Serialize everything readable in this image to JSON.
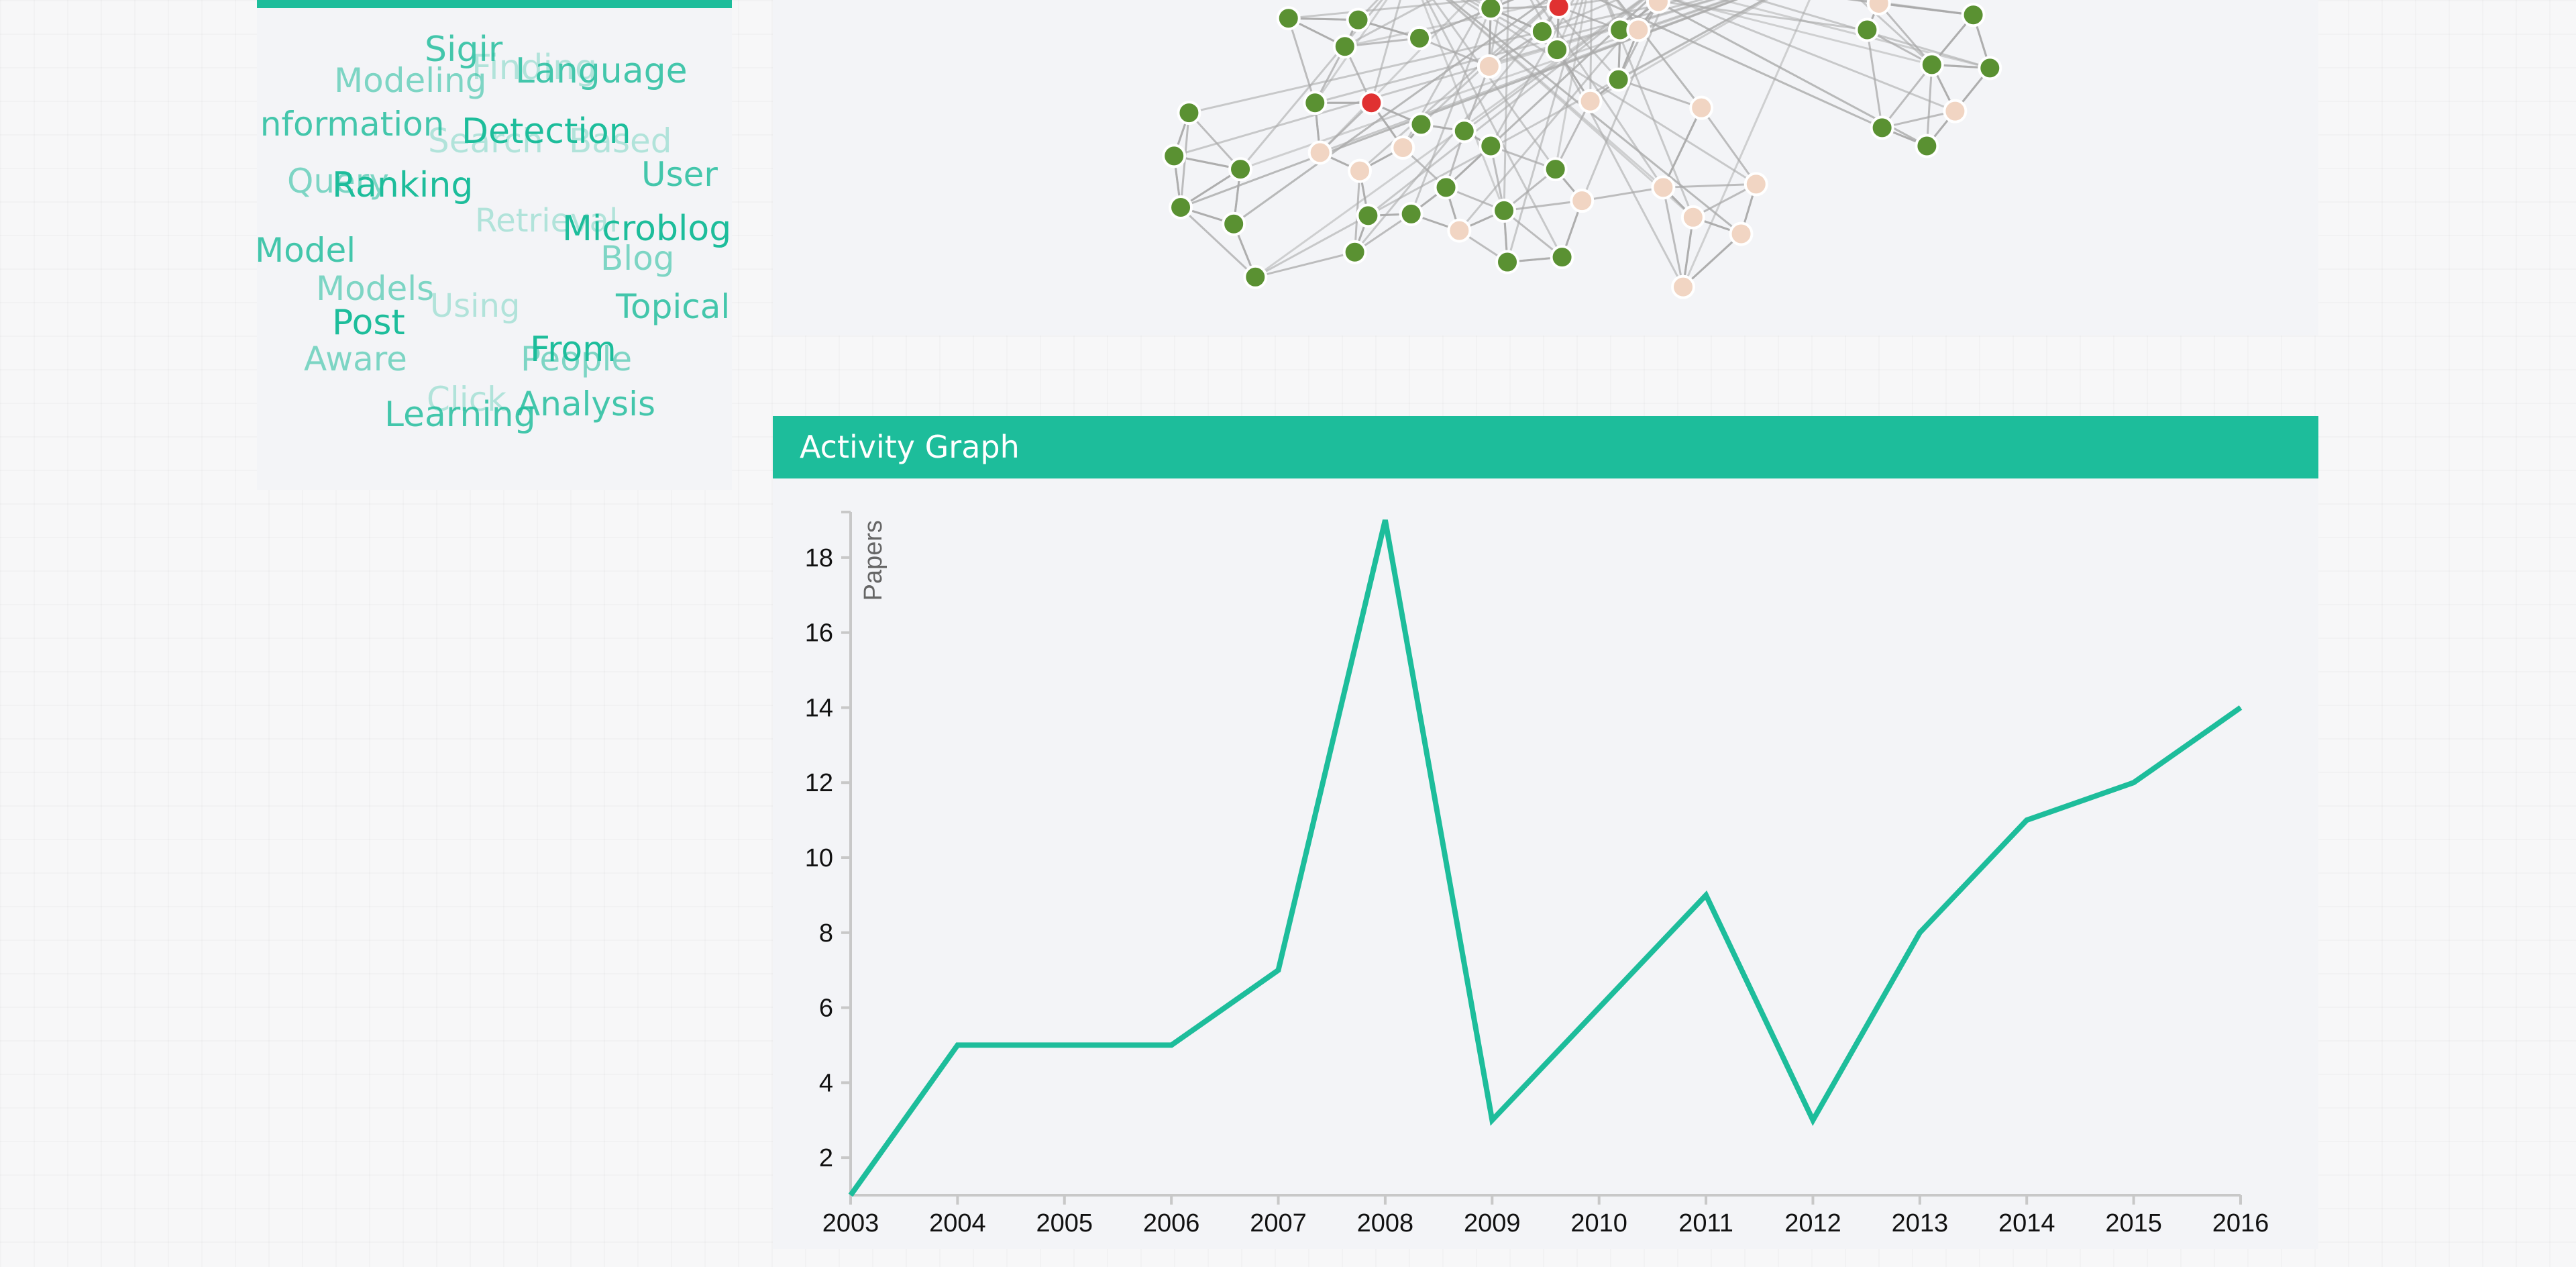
{
  "colors": {
    "accent": "#1dbd9b",
    "panel_bg": "#f3f4f7",
    "node_green": "#5a9132",
    "node_peach": "#f1d5c3",
    "node_red": "#e03131",
    "edge": "#aaaaaa",
    "line": "#1dbd9b"
  },
  "word_cloud": {
    "words": [
      {
        "text": "Sigir",
        "emphasis": "medium"
      },
      {
        "text": "Finding",
        "emphasis": "faint"
      },
      {
        "text": "Modeling",
        "emphasis": "light"
      },
      {
        "text": "Language",
        "emphasis": "medium"
      },
      {
        "text": "Information",
        "emphasis": "medium"
      },
      {
        "text": "Detection",
        "emphasis": "strong"
      },
      {
        "text": "Search",
        "emphasis": "faint"
      },
      {
        "text": "Based",
        "emphasis": "faint"
      },
      {
        "text": "User",
        "emphasis": "medium"
      },
      {
        "text": "Query",
        "emphasis": "light"
      },
      {
        "text": "Ranking",
        "emphasis": "strong"
      },
      {
        "text": "Retrieval",
        "emphasis": "faint"
      },
      {
        "text": "Microblog",
        "emphasis": "strong"
      },
      {
        "text": "Model",
        "emphasis": "medium"
      },
      {
        "text": "Blog",
        "emphasis": "light"
      },
      {
        "text": "Models",
        "emphasis": "light"
      },
      {
        "text": "Using",
        "emphasis": "faint"
      },
      {
        "text": "Topical",
        "emphasis": "medium"
      },
      {
        "text": "Post",
        "emphasis": "strong"
      },
      {
        "text": "From",
        "emphasis": "strong"
      },
      {
        "text": "Aware",
        "emphasis": "light"
      },
      {
        "text": "People",
        "emphasis": "light"
      },
      {
        "text": "Click",
        "emphasis": "faint"
      },
      {
        "text": "Analysis",
        "emphasis": "medium"
      },
      {
        "text": "Learning",
        "emphasis": "medium"
      }
    ]
  },
  "network": {
    "node_groups": [
      "author",
      "coauthor",
      "highlighted"
    ]
  },
  "activity": {
    "title": "Activity Graph"
  },
  "chart_data": {
    "type": "line",
    "title": "",
    "xlabel": "",
    "ylabel": "Papers",
    "x": [
      "2003",
      "2004",
      "2005",
      "2006",
      "2007",
      "2008",
      "2009",
      "2010",
      "2011",
      "2012",
      "2013",
      "2014",
      "2015",
      "2016"
    ],
    "values": [
      1,
      5,
      5,
      5,
      7,
      19,
      3,
      6,
      9,
      3,
      8,
      11,
      12,
      14
    ],
    "xlim": [
      "2003",
      "2016"
    ],
    "ylim": [
      1,
      19
    ],
    "yticks": [
      2,
      4,
      6,
      8,
      10,
      12,
      14,
      16,
      18
    ],
    "grid": false,
    "legend": "none"
  }
}
